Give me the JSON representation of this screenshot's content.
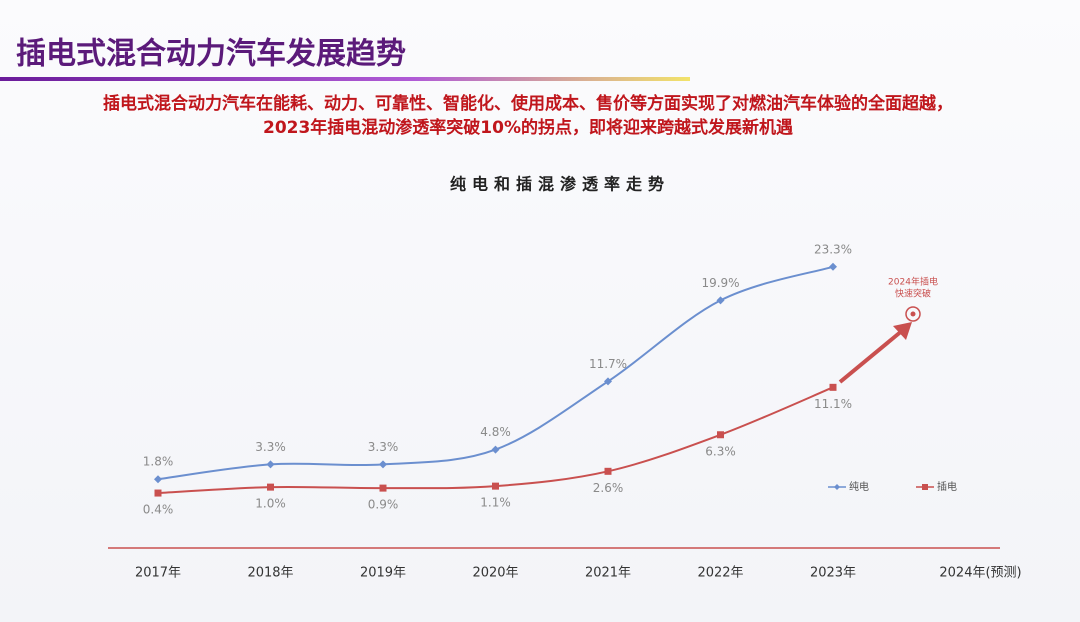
{
  "header": {
    "title": "插电式混合动力汽车发展趋势",
    "subtitle_lines": [
      "插电式混合动力汽车在能耗、动力、可靠性、智能化、使用成本、售价等方面实现了对燃油汽车体验的全面超越，",
      "2023年插电混动渗透率突破10%的拐点，即将迎来跨越式发展新机遇"
    ]
  },
  "chart_data": {
    "type": "line",
    "title": "纯电和插混渗透率走势",
    "categories": [
      "2017年",
      "2018年",
      "2019年",
      "2020年",
      "2021年",
      "2022年",
      "2023年",
      "2024年(预测)"
    ],
    "series": [
      {
        "name": "纯电",
        "color": "#6b8fcf",
        "marker": "diamond",
        "label_side": "above",
        "values": [
          1.8,
          3.3,
          3.3,
          4.8,
          11.7,
          19.9,
          23.3,
          null
        ],
        "value_labels": [
          "1.8%",
          "3.3%",
          "3.3%",
          "4.8%",
          "11.7%",
          "19.9%",
          "23.3%",
          null
        ]
      },
      {
        "name": "插电",
        "color": "#c9504f",
        "marker": "square",
        "label_side": "below",
        "values": [
          0.4,
          1.0,
          0.9,
          1.1,
          2.6,
          6.3,
          11.1,
          null
        ],
        "value_labels": [
          "0.4%",
          "1.0%",
          "0.9%",
          "1.1%",
          "2.6%",
          "6.3%",
          "11.1%",
          null
        ]
      }
    ],
    "ylim": [
      0,
      25
    ],
    "smooth": true,
    "legend": "right",
    "annotation": [
      "2024年插电",
      "快速突破"
    ]
  }
}
